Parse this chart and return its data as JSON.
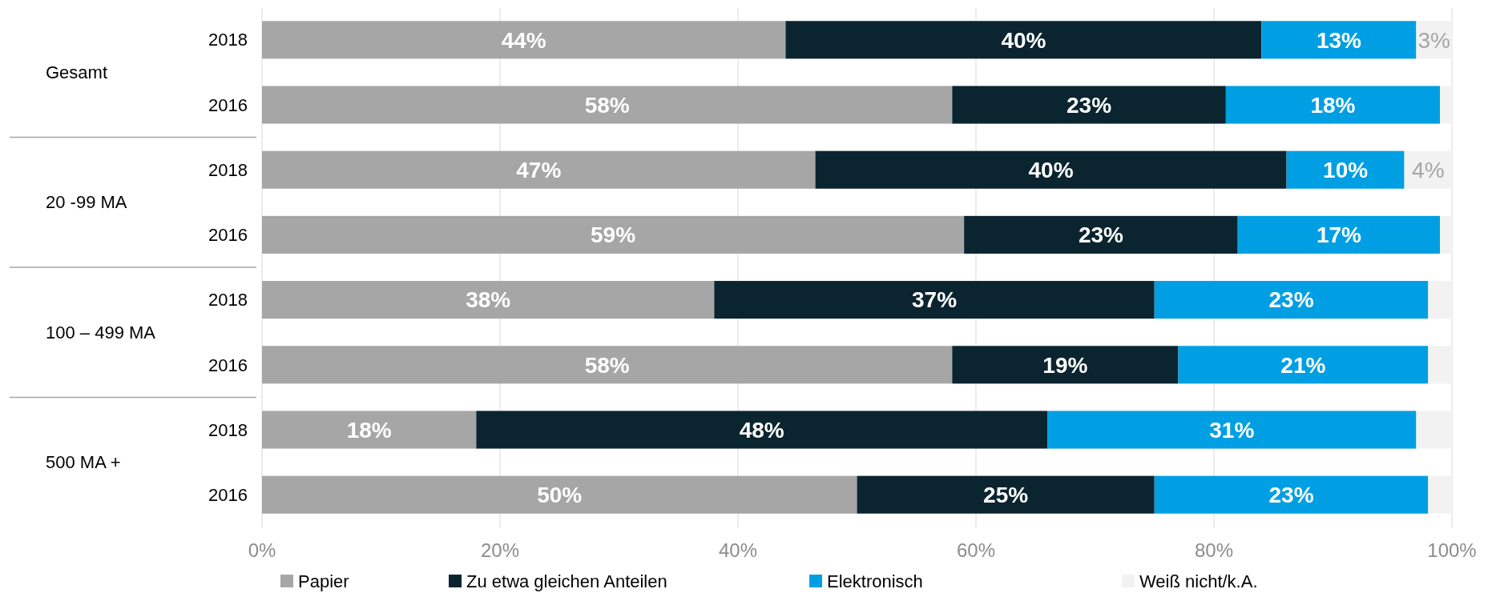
{
  "chart_data": {
    "type": "bar",
    "orientation": "horizontal",
    "stacked": true,
    "categories": [
      "2018",
      "2016",
      "2018",
      "2016",
      "2018",
      "2016",
      "2018",
      "2016"
    ],
    "annotations": [
      "Gesamt",
      "20 -99 MA",
      "100 – 499 MA",
      "500 MA +"
    ],
    "series": [
      {
        "name": "Papier",
        "color": "#a6a6a6",
        "values": [
          44,
          58,
          46.5,
          59,
          38,
          58,
          18,
          50
        ],
        "value_labels": [
          "44%",
          "58%",
          "47%",
          "59%",
          "38%",
          "58%",
          "18%",
          "50%"
        ]
      },
      {
        "name": "Zu etwa gleichen Anteilen",
        "color": "#0b2530",
        "values": [
          40,
          23,
          39.6,
          23,
          37,
          19,
          48,
          25
        ],
        "value_labels": [
          "40%",
          "23%",
          "40%",
          "23%",
          "37%",
          "19%",
          "48%",
          "25%"
        ]
      },
      {
        "name": "Elektronisch",
        "color": "#009fe3",
        "values": [
          13,
          18,
          9.9,
          17,
          23,
          21,
          31,
          23
        ],
        "value_labels": [
          "13%",
          "18%",
          "10%",
          "17%",
          "23%",
          "21%",
          "31%",
          "23%"
        ]
      },
      {
        "name": "Weiß nicht/k.A.",
        "color": "#f2f2f2",
        "values": [
          3,
          1,
          4,
          1,
          2,
          2,
          3,
          2
        ],
        "value_labels": [
          "3%",
          null,
          "4%",
          null,
          null,
          null,
          null,
          null
        ]
      }
    ],
    "xlim": [
      0,
      100
    ],
    "xticks": [
      {
        "value": 0,
        "label": "0%"
      },
      {
        "value": 20,
        "label": "20%"
      },
      {
        "value": 40,
        "label": "40%"
      },
      {
        "value": 60,
        "label": "60%"
      },
      {
        "value": 80,
        "label": "80%"
      },
      {
        "value": 100,
        "label": "100%"
      }
    ],
    "grid": "x",
    "legend": "bottom"
  }
}
